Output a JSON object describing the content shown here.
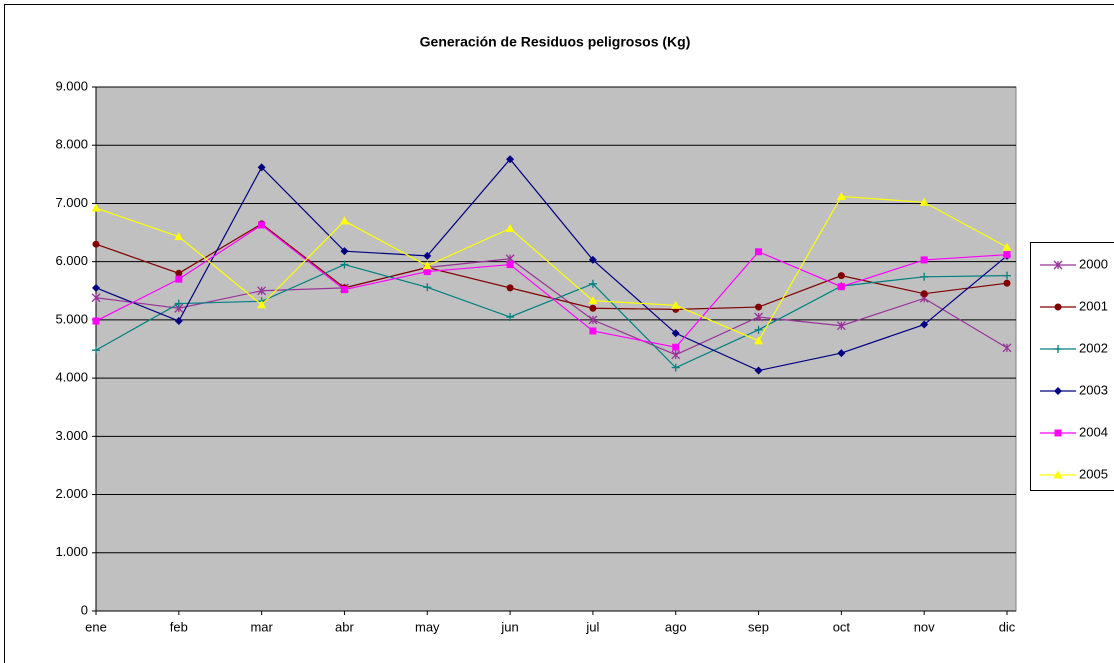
{
  "chart_data": {
    "type": "line",
    "title": "Generación de Residuos peligrosos (Kg)",
    "categories": [
      "ene",
      "feb",
      "mar",
      "abr",
      "may",
      "jun",
      "jul",
      "ago",
      "sep",
      "oct",
      "nov",
      "dic"
    ],
    "ylim": [
      0,
      9000
    ],
    "yticks": [
      0,
      {
        "value": 1000,
        "label": "1.000"
      },
      {
        "value": 2000,
        "label": "2.000"
      },
      {
        "value": 3000,
        "label": "3.000"
      },
      {
        "value": 4000,
        "label": "4.000"
      },
      {
        "value": 5000,
        "label": "5.000"
      },
      {
        "value": 6000,
        "label": "6.000"
      },
      {
        "value": 7000,
        "label": "7.000"
      },
      {
        "value": 8000,
        "label": "8.000"
      },
      {
        "value": 9000,
        "label": "9.000"
      }
    ],
    "grid": true,
    "legend": "right",
    "series": [
      {
        "name": "2000",
        "color": "#993399",
        "marker": "asterisk",
        "values": [
          5380,
          5200,
          5500,
          5550,
          5900,
          6050,
          5000,
          4400,
          5050,
          4900,
          5370,
          4520
        ]
      },
      {
        "name": "2001",
        "color": "#800000",
        "marker": "circle",
        "values": [
          6300,
          5800,
          6650,
          5550,
          5900,
          5550,
          5200,
          5180,
          5220,
          5760,
          5450,
          5630
        ]
      },
      {
        "name": "2002",
        "color": "#008080",
        "marker": "plus",
        "values": [
          4480,
          5280,
          5320,
          5950,
          5560,
          5050,
          5620,
          4180,
          4830,
          5580,
          5740,
          5760
        ]
      },
      {
        "name": "2003",
        "color": "#000080",
        "marker": "diamond",
        "values": [
          5550,
          4980,
          7620,
          6180,
          6100,
          7760,
          6030,
          4770,
          4130,
          4430,
          4920,
          6100
        ]
      },
      {
        "name": "2004",
        "color": "#FF00FF",
        "marker": "square",
        "values": [
          4980,
          5700,
          6630,
          5520,
          5830,
          5950,
          4810,
          4530,
          6170,
          5570,
          6030,
          6120
        ]
      },
      {
        "name": "2005",
        "color": "#FFFF00",
        "marker": "triangle",
        "values": [
          6920,
          6430,
          5260,
          6700,
          5930,
          6570,
          5330,
          5250,
          4640,
          7120,
          7020,
          6250
        ]
      }
    ]
  }
}
